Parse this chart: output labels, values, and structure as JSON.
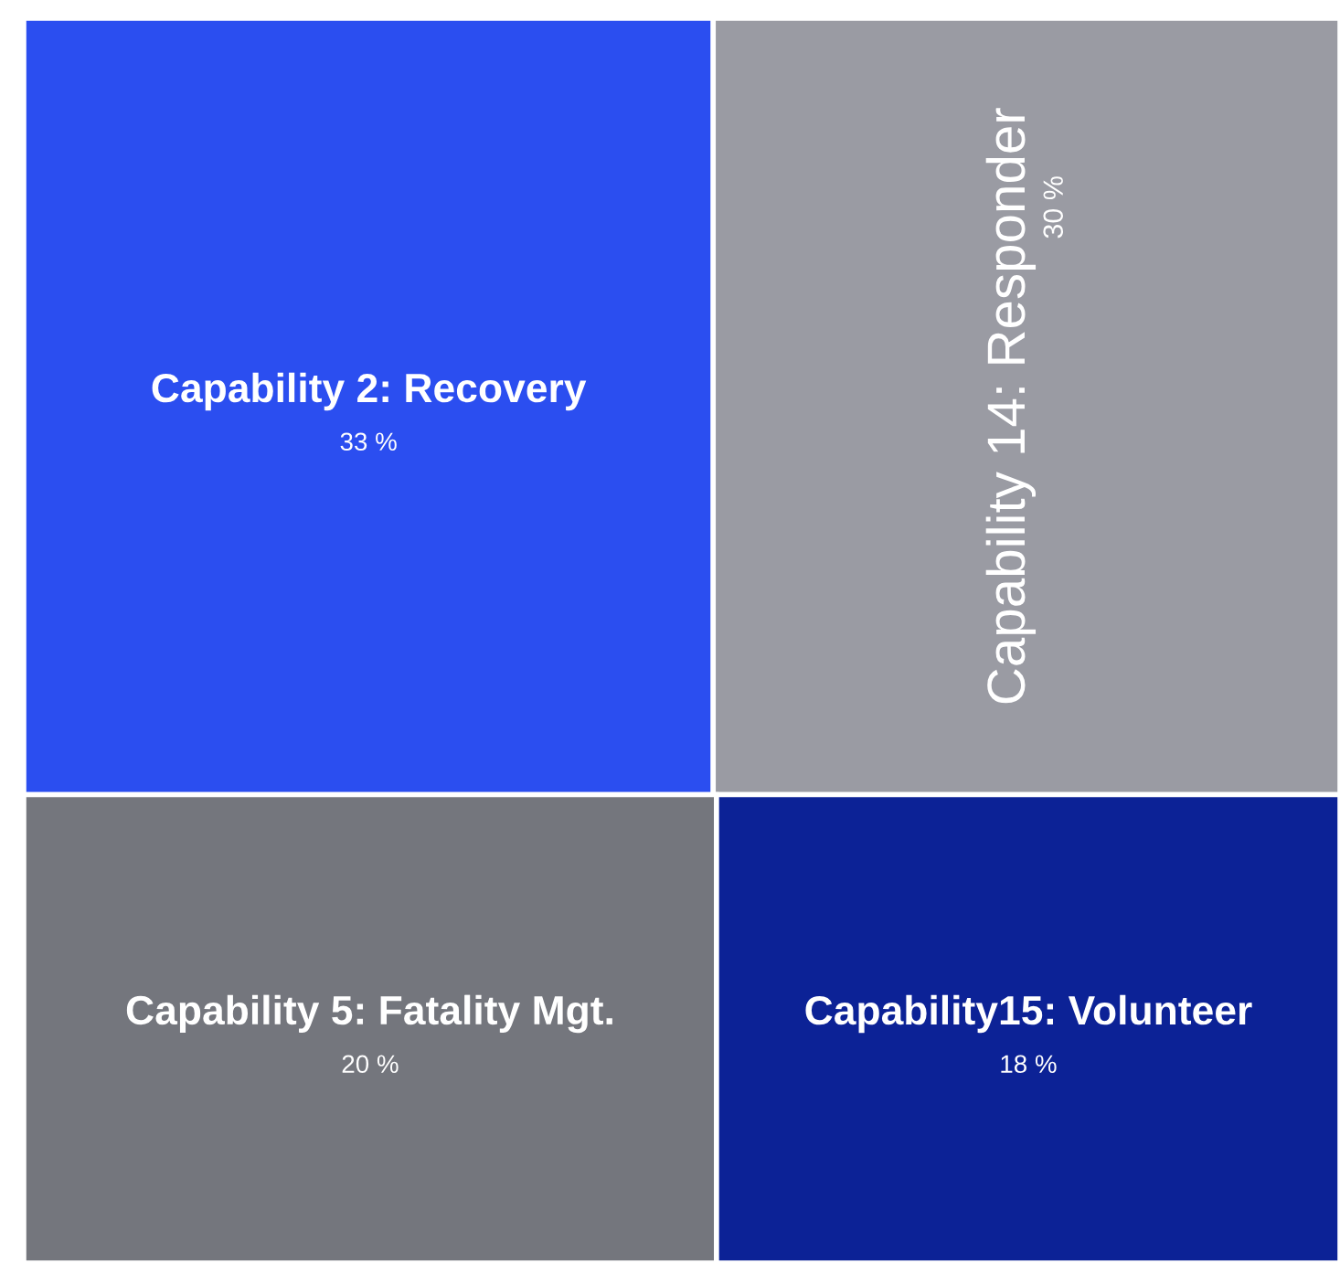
{
  "chart_data": {
    "type": "other",
    "categories": [
      "Capability 2: Recovery",
      "Capability 14: Responder",
      "Capability 5: Fatality Mgt.",
      "Capability15: Volunteer"
    ],
    "values": [
      33,
      30,
      20,
      18
    ],
    "value_labels": [
      "33 %",
      "30 %",
      "20 %",
      "18 %"
    ],
    "colors": [
      "#2b4ef0",
      "#9a9ba3",
      "#74767d",
      "#0c2296"
    ]
  }
}
